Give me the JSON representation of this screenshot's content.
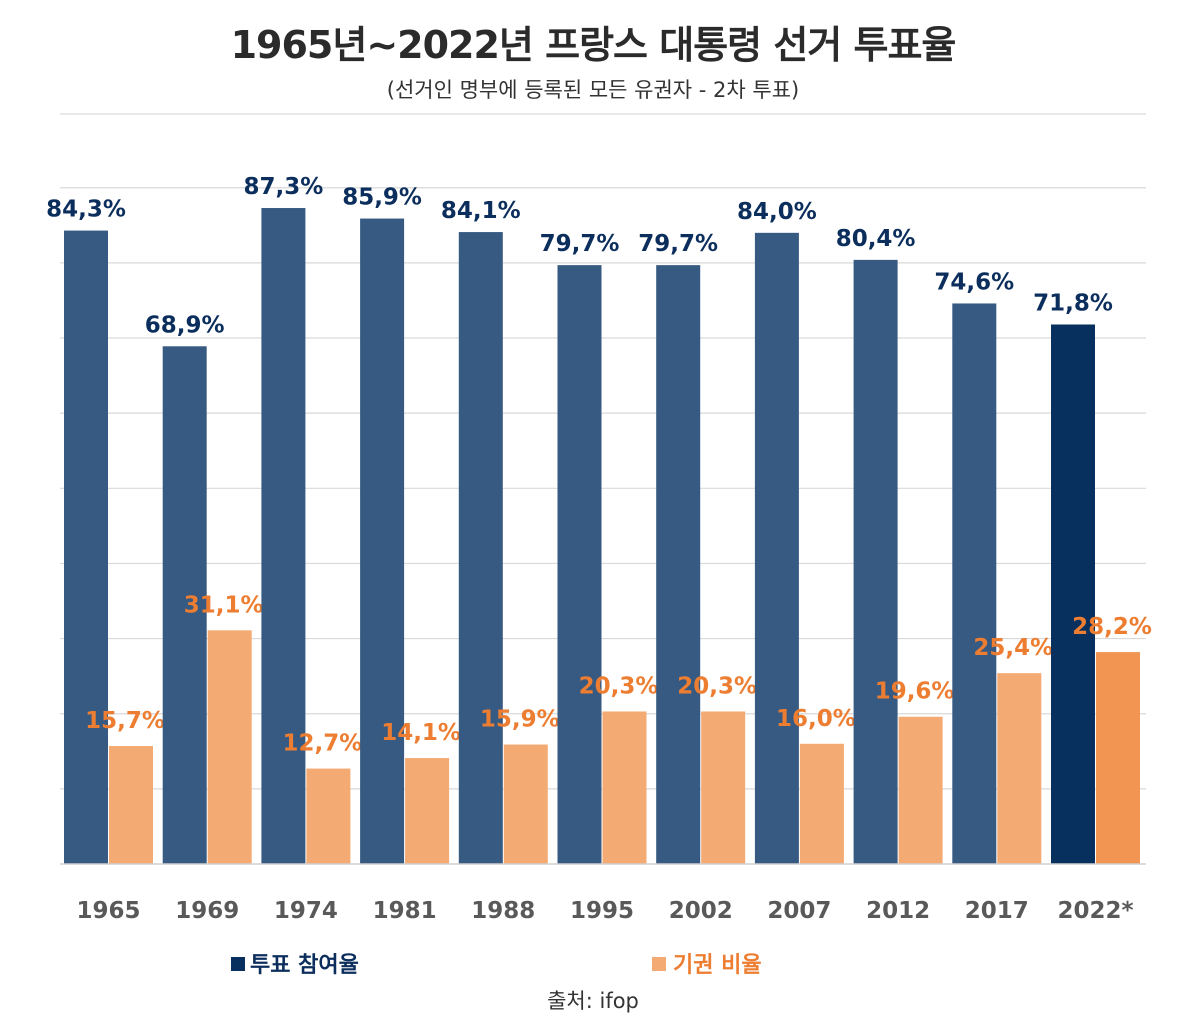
{
  "chart_data": {
    "type": "bar",
    "title": "1965년~2022년 프랑스 대통령 선거 투표율",
    "subtitle": "(선거인 명부에 등록된 모든 유권자 - 2차 투표)",
    "source": "출처: ifop",
    "categories": [
      "1965",
      "1969",
      "1974",
      "1981",
      "1988",
      "1995",
      "2002",
      "2007",
      "2012",
      "2017",
      "2022*"
    ],
    "series": [
      {
        "name": "투표 참여율",
        "color": "#375a82",
        "highlight_color": "#07305e",
        "values": [
          84.3,
          68.9,
          87.3,
          85.9,
          84.1,
          79.7,
          79.7,
          84.0,
          80.4,
          74.6,
          71.8
        ],
        "labels": [
          "84,3%",
          "68,9%",
          "87,3%",
          "85,9%",
          "84,1%",
          "79,7%",
          "79,7%",
          "84,0%",
          "80,4%",
          "74,6%",
          "71,8%"
        ],
        "label_color": "#0b2e5c"
      },
      {
        "name": "기권 비율",
        "color": "#f4aa73",
        "highlight_color": "#f29552",
        "values": [
          15.7,
          31.1,
          12.7,
          14.1,
          15.9,
          20.3,
          20.3,
          16.0,
          19.6,
          25.4,
          28.2
        ],
        "labels": [
          "15,7%",
          "31,1%",
          "12,7%",
          "14,1%",
          "15,9%",
          "20,3%",
          "20,3%",
          "16,0%",
          "19,6%",
          "25,4%",
          "28,2%"
        ],
        "label_color": "#ed7d31"
      }
    ],
    "highlight_index": 10,
    "ylim": [
      0,
      90
    ],
    "grid_step": 10,
    "grid": true,
    "xlabel": "",
    "ylabel": "",
    "legend_position": "bottom"
  }
}
